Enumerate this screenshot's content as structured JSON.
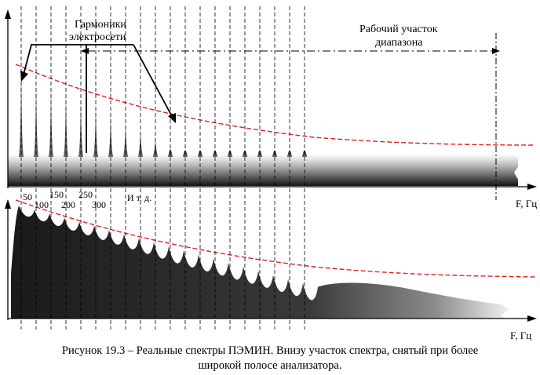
{
  "labels": {
    "harmonics_line1": "Гармоники",
    "harmonics_line2": "электросети",
    "work_line1": "Рабочий участок",
    "work_line2": "диапазона",
    "freq_axis_top": "F, Гц",
    "freq_axis_bottom": "F, Гц",
    "etc": "И т. д.",
    "ticks": [
      "50",
      "100",
      "150",
      "200",
      "250",
      "300"
    ]
  },
  "caption": {
    "line1": "Рисунок 19.3 – Реальные спектры ПЭМИН. Внизу участок спектра, снятый при более",
    "line2": "широкой полосе анализатора."
  },
  "colors": {
    "threshold_curve": "#e02020",
    "axis": "#000000",
    "spectrum_dark": "#1a1a1a",
    "spectrum_light": "#f0f0f0"
  }
}
